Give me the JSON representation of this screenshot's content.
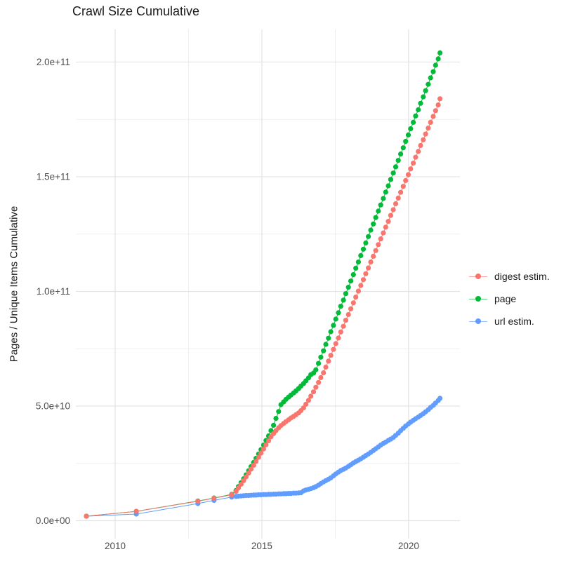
{
  "title": "Crawl Size Cumulative",
  "axes": {
    "y_title": "Pages / Unique Items Cumulative",
    "x_ticks": [
      {
        "label": "2010",
        "year": 2010
      },
      {
        "label": "2015",
        "year": 2015
      },
      {
        "label": "2020",
        "year": 2020
      }
    ],
    "y_ticks": [
      {
        "label": "0.0e+00",
        "billions": 0
      },
      {
        "label": "5.0e+10",
        "billions": 50
      },
      {
        "label": "1.0e+11",
        "billions": 100
      },
      {
        "label": "1.5e+11",
        "billions": 150
      },
      {
        "label": "2.0e+11",
        "billions": 200
      }
    ],
    "x_minor": [
      2012.5,
      2017.5
    ],
    "y_minor": [
      25,
      75,
      125,
      175
    ]
  },
  "legend": {
    "items": [
      {
        "label": "digest estim.",
        "color": "#F8766D"
      },
      {
        "label": "page",
        "color": "#00BA38"
      },
      {
        "label": "url estim.",
        "color": "#619CFF"
      }
    ]
  },
  "colors": {
    "grid_major": "#e3e3e3",
    "grid_minor": "#efefef",
    "tick_text": "#4d4d4d",
    "title_text": "#1a1a1a"
  },
  "chart_data": {
    "type": "line",
    "title": "Crawl Size Cumulative",
    "xlabel": "",
    "ylabel": "Pages / Unique Items Cumulative",
    "legend_position": "right",
    "grid": true,
    "x_unit": "decimal year",
    "y_unit": "count (values in billions, i.e. value x 1e9)",
    "xlim": [
      2008.66,
      2021.75
    ],
    "ylim_billions": [
      -7.8,
      214.2
    ],
    "x_breaks": [
      2010,
      2015,
      2020
    ],
    "y_breaks_billions": [
      0,
      50,
      100,
      150,
      200
    ],
    "x": [
      2009.02,
      2010.72,
      2012.82,
      2013.37,
      2013.97,
      2014.12,
      2014.2,
      2014.29,
      2014.38,
      2014.46,
      2014.55,
      2014.63,
      2014.72,
      2014.8,
      2014.89,
      2014.97,
      2015.06,
      2015.14,
      2015.23,
      2015.31,
      2015.4,
      2015.48,
      2015.57,
      2015.65,
      2015.74,
      2015.82,
      2015.91,
      2015.99,
      2016.08,
      2016.16,
      2016.25,
      2016.33,
      2016.42,
      2016.5,
      2016.59,
      2016.67,
      2016.76,
      2016.84,
      2016.93,
      2017.01,
      2017.1,
      2017.18,
      2017.27,
      2017.35,
      2017.44,
      2017.52,
      2017.61,
      2017.69,
      2017.78,
      2017.86,
      2017.95,
      2018.03,
      2018.12,
      2018.2,
      2018.29,
      2018.37,
      2018.46,
      2018.54,
      2018.63,
      2018.71,
      2018.8,
      2018.88,
      2018.97,
      2019.05,
      2019.14,
      2019.22,
      2019.31,
      2019.39,
      2019.48,
      2019.56,
      2019.65,
      2019.73,
      2019.82,
      2019.9,
      2019.99,
      2020.07,
      2020.16,
      2020.24,
      2020.33,
      2020.41,
      2020.5,
      2020.58,
      2020.67,
      2020.75,
      2020.84,
      2020.92,
      2021.01,
      2021.07
    ],
    "series": [
      {
        "name": "digest estim.",
        "color": "#F8766D",
        "values_billions": [
          2.0,
          4.1,
          8.5,
          9.8,
          11.3,
          12.8,
          14.3,
          15.9,
          17.5,
          19.1,
          20.8,
          22.5,
          24.2,
          25.9,
          27.7,
          29.5,
          31.3,
          33.1,
          34.9,
          36.6,
          38.0,
          39.3,
          40.5,
          41.5,
          42.4,
          43.2,
          44.0,
          44.8,
          45.5,
          46.2,
          47.0,
          48.0,
          49.2,
          50.8,
          52.5,
          54.3,
          56.2,
          58.2,
          60.3,
          62.4,
          64.5,
          67.0,
          69.6,
          72.1,
          74.7,
          77.2,
          79.7,
          82.3,
          84.8,
          87.4,
          89.9,
          92.4,
          95.0,
          97.5,
          100.1,
          102.6,
          105.1,
          107.7,
          110.2,
          112.8,
          115.3,
          117.8,
          120.4,
          122.9,
          125.5,
          128.0,
          130.5,
          133.1,
          135.6,
          138.2,
          140.7,
          143.2,
          145.8,
          148.3,
          150.9,
          153.4,
          155.9,
          158.5,
          161.0,
          163.6,
          166.1,
          168.6,
          171.2,
          173.7,
          176.3,
          178.8,
          181.3,
          184.0
        ]
      },
      {
        "name": "page",
        "color": "#00BA38",
        "values_billions": [
          2.0,
          4.1,
          8.6,
          9.9,
          11.5,
          13.2,
          14.9,
          16.6,
          18.3,
          20.0,
          21.8,
          23.6,
          25.4,
          27.2,
          29.1,
          31.0,
          33.0,
          35.0,
          37.0,
          39.3,
          41.6,
          44.6,
          47.6,
          50.6,
          51.8,
          52.9,
          53.9,
          54.8,
          55.7,
          56.6,
          57.6,
          58.7,
          59.8,
          61.0,
          62.3,
          63.7,
          64.4,
          65.8,
          68.6,
          71.3,
          74.1,
          76.9,
          79.6,
          82.4,
          85.2,
          87.9,
          90.7,
          93.5,
          96.2,
          99.0,
          101.8,
          104.5,
          107.3,
          110.1,
          112.8,
          115.6,
          118.4,
          121.1,
          123.9,
          126.7,
          129.4,
          132.2,
          135.0,
          137.7,
          140.5,
          143.3,
          146.0,
          148.8,
          151.6,
          154.3,
          157.1,
          159.9,
          162.6,
          165.4,
          168.2,
          170.9,
          173.7,
          176.5,
          179.2,
          182.0,
          184.8,
          187.5,
          190.3,
          193.1,
          195.8,
          198.6,
          201.4,
          204.0
        ]
      },
      {
        "name": "url estim.",
        "color": "#619CFF",
        "values_billions": [
          2.0,
          2.9,
          7.5,
          8.9,
          10.3,
          10.6,
          10.7,
          10.8,
          10.9,
          11.0,
          11.0,
          11.1,
          11.2,
          11.2,
          11.3,
          11.3,
          11.4,
          11.4,
          11.5,
          11.5,
          11.6,
          11.6,
          11.7,
          11.7,
          11.8,
          11.8,
          11.9,
          11.9,
          12.0,
          12.0,
          12.1,
          12.2,
          13.0,
          13.4,
          13.7,
          14.0,
          14.4,
          14.9,
          15.5,
          16.2,
          16.9,
          17.5,
          18.1,
          18.7,
          19.6,
          20.4,
          21.2,
          21.9,
          22.4,
          23.0,
          23.7,
          24.4,
          25.2,
          25.8,
          26.4,
          27.0,
          27.7,
          28.4,
          29.1,
          29.8,
          30.6,
          31.4,
          32.2,
          33.0,
          33.7,
          34.3,
          35.0,
          35.6,
          36.3,
          37.2,
          38.2,
          39.3,
          40.3,
          41.3,
          42.2,
          43.0,
          43.8,
          44.5,
          45.2,
          45.9,
          46.7,
          47.5,
          48.4,
          49.4,
          50.3,
          51.3,
          52.4,
          53.4
        ]
      }
    ]
  }
}
